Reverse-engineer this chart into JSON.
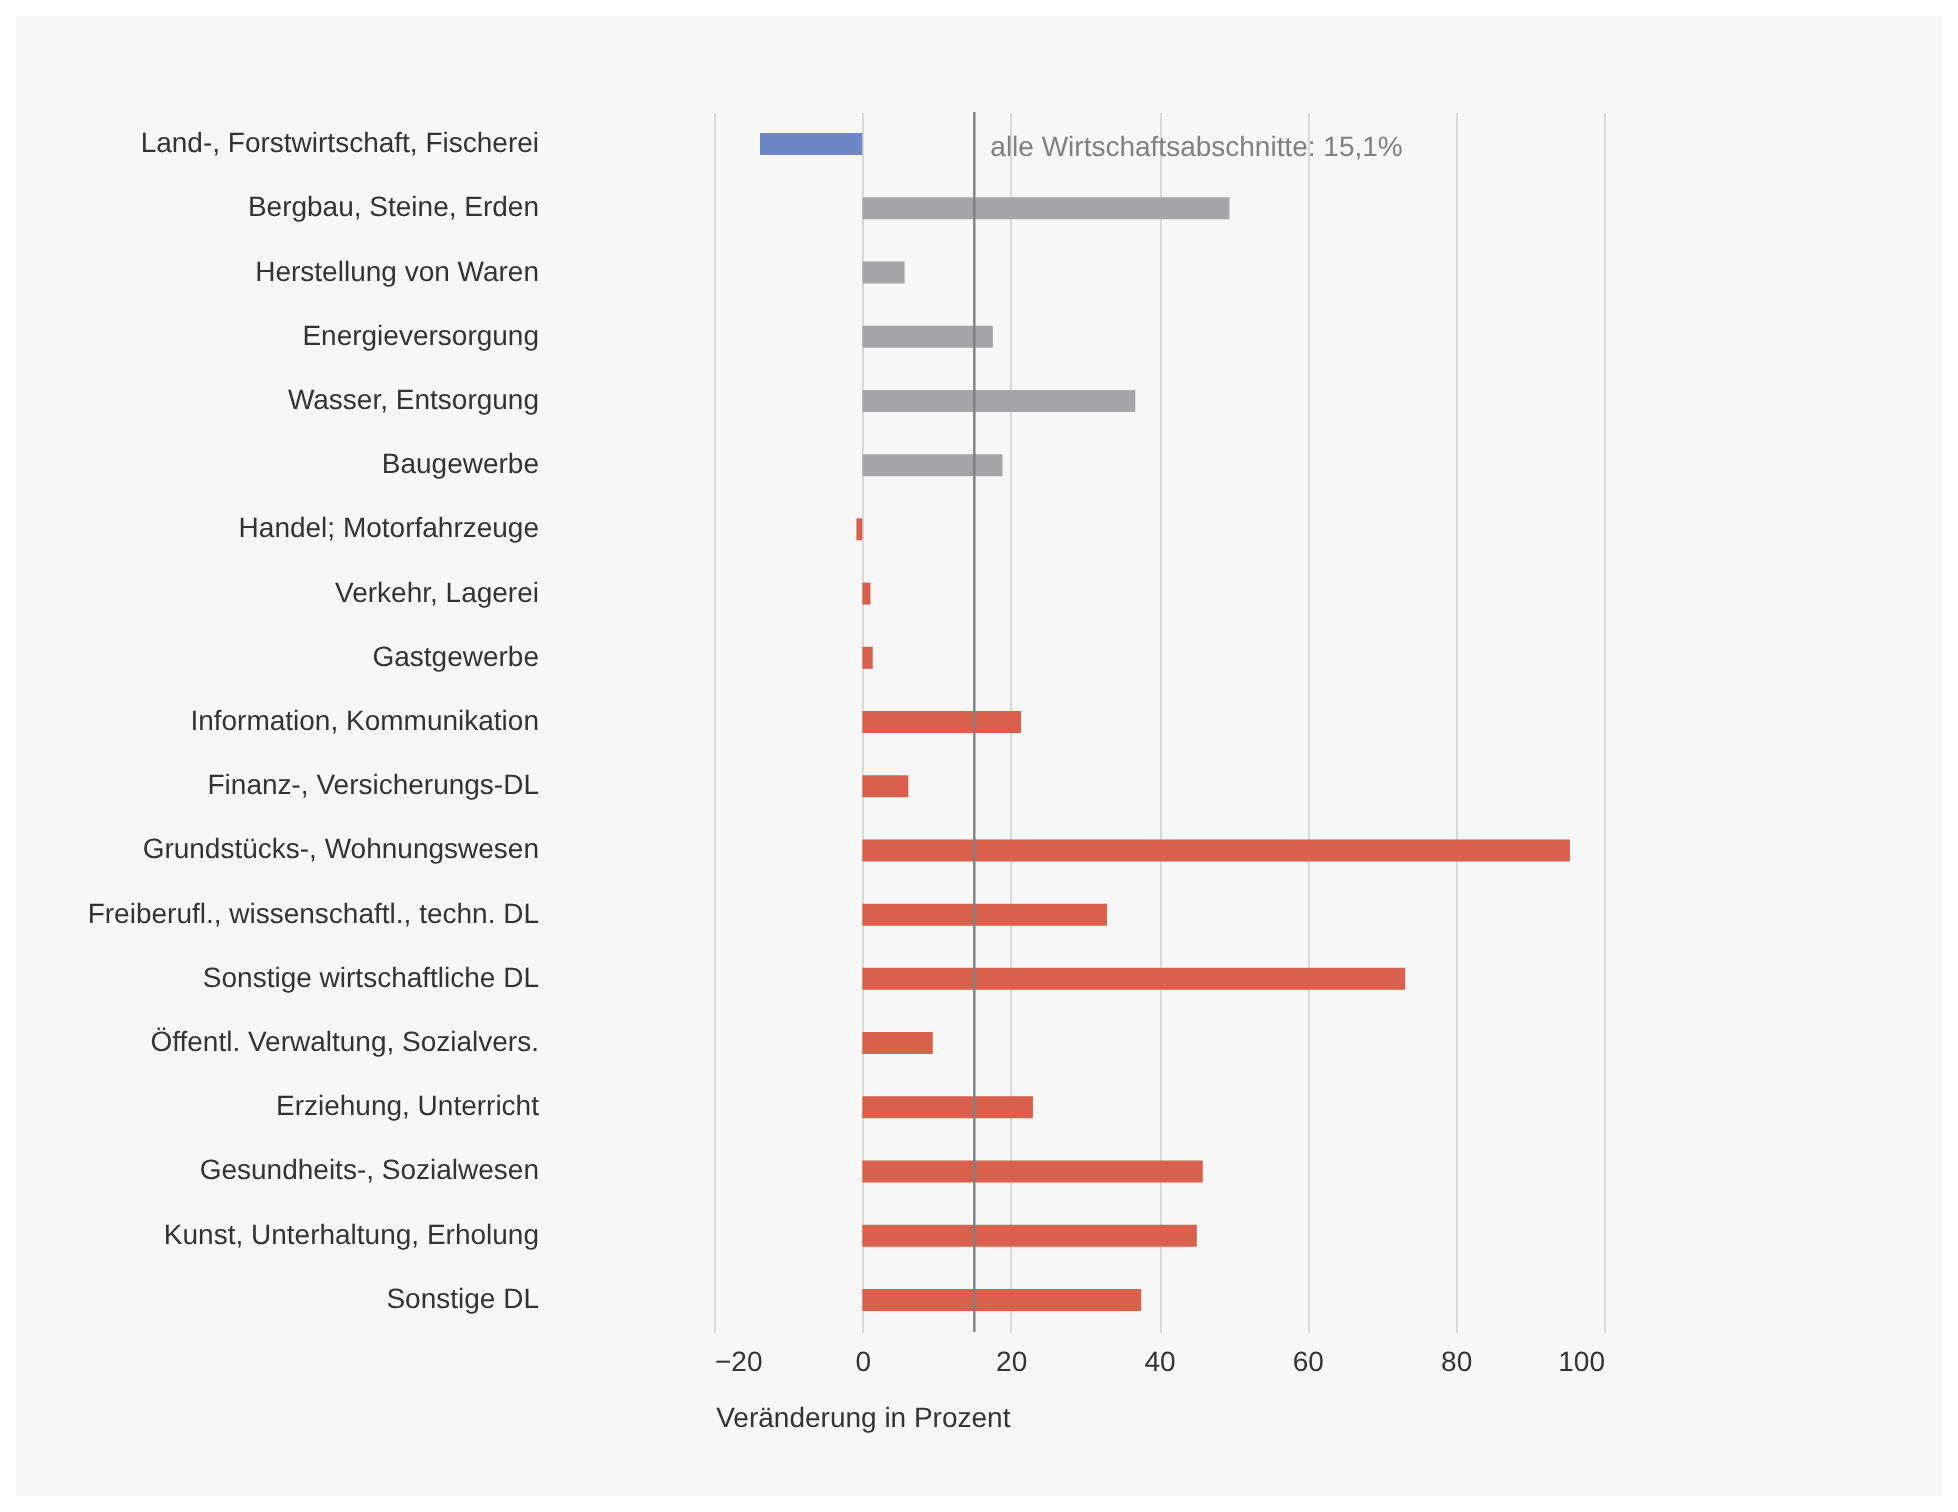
{
  "chart_data": {
    "type": "bar",
    "orientation": "horizontal",
    "xlabel": "Veränderung in Prozent",
    "categories": [
      "Land-, Forstwirtschaft, Fischerei",
      "Bergbau, Steine, Erden",
      "Herstellung von Waren",
      "Energieversorgung",
      "Wasser, Entsorgung",
      "Baugewerbe",
      "Handel; Motorfahrzeuge",
      "Verkehr, Lagerei",
      "Gastgewerbe",
      "Information, Kommunikation",
      "Finanz-, Versicherungs-DL",
      "Grundstücks-, Wohnungswesen",
      "Freiberufl., wissenschaftl., techn. DL",
      "Sonstige wirtschaftliche DL",
      "Öffentl. Verwaltung, Sozialvers.",
      "Erziehung, Unterricht",
      "Gesundheits-, Sozialwesen",
      "Kunst, Unterhaltung, Erholung",
      "Sonstige DL"
    ],
    "values": [
      -13.8,
      49.5,
      5.7,
      17.6,
      36.8,
      18.9,
      -0.8,
      1.1,
      1.4,
      21.4,
      6.2,
      95.4,
      33,
      73.2,
      9.5,
      23,
      45.9,
      45.1,
      37.6
    ],
    "colors": [
      "#6f86c5",
      "#a5a5a7",
      "#a5a5a7",
      "#a5a5a7",
      "#a5a5a7",
      "#a5a5a7",
      "#d9604c",
      "#d9604c",
      "#d9604c",
      "#d9604c",
      "#d9604c",
      "#d9604c",
      "#d9604c",
      "#d9604c",
      "#d9604c",
      "#d9604c",
      "#d9604c",
      "#d9604c",
      "#d9604c"
    ],
    "xlim": [
      -20,
      100
    ],
    "xticks": [
      -20,
      0,
      20,
      40,
      60,
      80,
      100
    ],
    "grid": "x",
    "ref_lines": [
      {
        "axis": "x",
        "value": 15.1,
        "label": "alle Wirtschaftsabschnitte: 15,1%",
        "color": "#808080"
      }
    ]
  }
}
